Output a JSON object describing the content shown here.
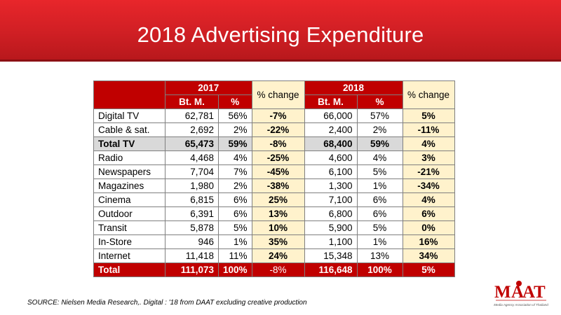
{
  "title": "2018 Advertising Expenditure",
  "headers": {
    "year1": "2017",
    "year2": "2018",
    "sub_amount": "Bt. M.",
    "sub_pct": "%",
    "change": "% change"
  },
  "rows": [
    {
      "label": "Digital TV",
      "v17": "62,781",
      "p17": "56%",
      "chg17": "-7%",
      "v18": "66,000",
      "p18": "57%",
      "chg18": "5%"
    },
    {
      "label": "Cable & sat.",
      "v17": "2,692",
      "p17": "2%",
      "chg17": "-22%",
      "v18": "2,400",
      "p18": "2%",
      "chg18": "-11%"
    },
    {
      "label": "Total TV",
      "v17": "65,473",
      "p17": "59%",
      "chg17": "-8%",
      "v18": "68,400",
      "p18": "59%",
      "chg18": "4%"
    },
    {
      "label": "Radio",
      "v17": "4,468",
      "p17": "4%",
      "chg17": "-25%",
      "v18": "4,600",
      "p18": "4%",
      "chg18": "3%"
    },
    {
      "label": "Newspapers",
      "v17": "7,704",
      "p17": "7%",
      "chg17": "-45%",
      "v18": "6,100",
      "p18": "5%",
      "chg18": "-21%"
    },
    {
      "label": "Magazines",
      "v17": "1,980",
      "p17": "2%",
      "chg17": "-38%",
      "v18": "1,300",
      "p18": "1%",
      "chg18": "-34%"
    },
    {
      "label": "Cinema",
      "v17": "6,815",
      "p17": "6%",
      "chg17": "25%",
      "v18": "7,100",
      "p18": "6%",
      "chg18": "4%"
    },
    {
      "label": "Outdoor",
      "v17": "6,391",
      "p17": "6%",
      "chg17": "13%",
      "v18": "6,800",
      "p18": "6%",
      "chg18": "6%"
    },
    {
      "label": "Transit",
      "v17": "5,878",
      "p17": "5%",
      "chg17": "10%",
      "v18": "5,900",
      "p18": "5%",
      "chg18": "0%"
    },
    {
      "label": "In-Store",
      "v17": "946",
      "p17": "1%",
      "chg17": "35%",
      "v18": "1,100",
      "p18": "1%",
      "chg18": "16%"
    },
    {
      "label": "Internet",
      "v17": "11,418",
      "p17": "11%",
      "chg17": "24%",
      "v18": "15,348",
      "p18": "13%",
      "chg18": "34%"
    },
    {
      "label": "Total",
      "v17": "111,073",
      "p17": "100%",
      "chg17": "-8%",
      "v18": "116,648",
      "p18": "100%",
      "chg18": "5%"
    }
  ],
  "source": "SOURCE: Nielsen Media Research,.  Digital : '18 from DAAT excluding creative production",
  "logo": {
    "text": "MAAT",
    "subtitle": "Media Agency Association of Thailand"
  },
  "colors": {
    "brand_red": "#c00000",
    "banner_red": "#d01f24",
    "highlight_yellow": "#fff2cc",
    "total_tv_gray": "#d9d9d9"
  }
}
